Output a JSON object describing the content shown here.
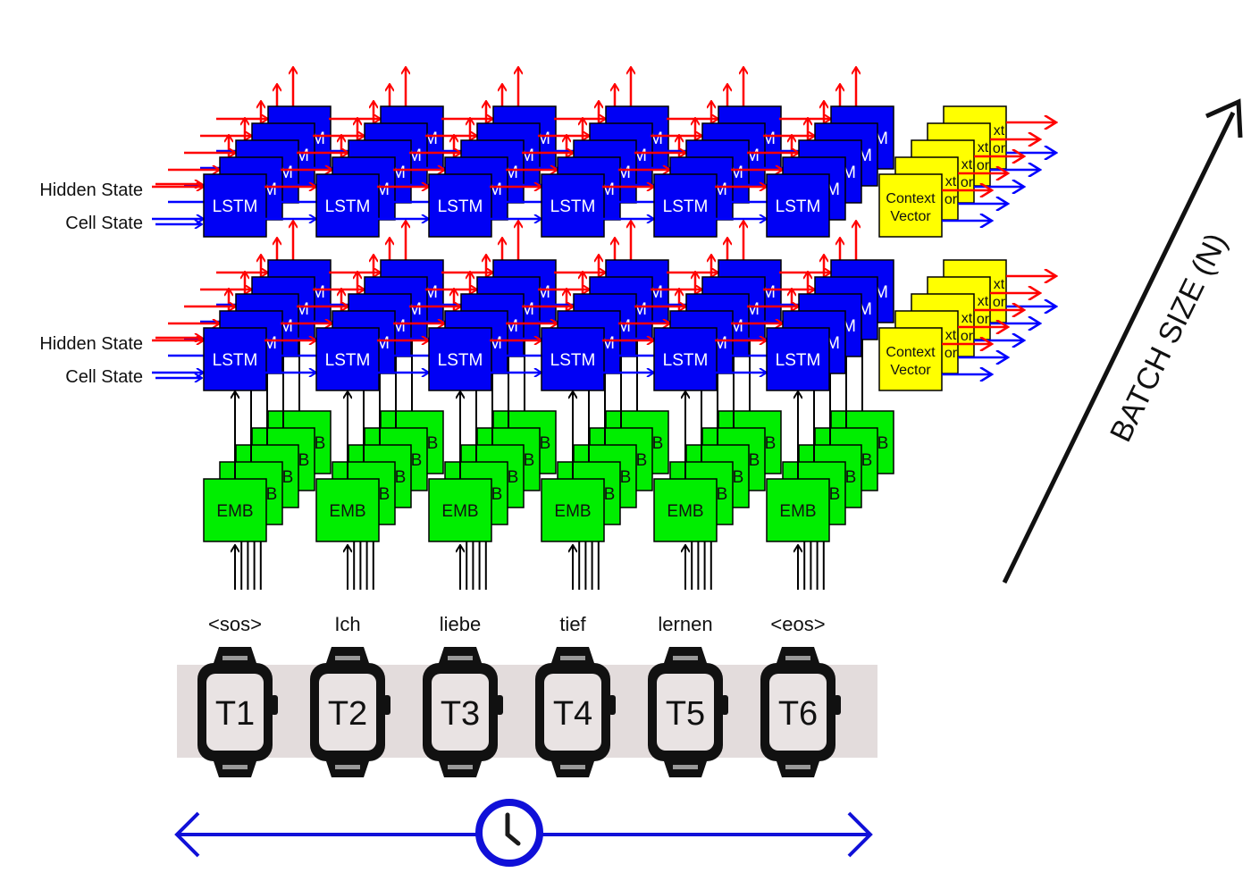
{
  "colors": {
    "lstm": "#0000f5",
    "embedding": "#00ee00",
    "context": "#ffff00",
    "hidden_arrow": "#ff0000",
    "cell_arrow": "#0000ff",
    "timeline": "#1010d8",
    "watch_band": "#e3dcdc",
    "watch": "#111111"
  },
  "labels": {
    "hidden_state": "Hidden State",
    "cell_state": "Cell State",
    "lstm": "LSTM",
    "emb": "EMB",
    "context_line1": "Context",
    "context_line2": "Vector",
    "batch_size": "BATCH SIZE (N)"
  },
  "tokens": [
    "<sos>",
    "Ich",
    "liebe",
    "tief",
    "lernen",
    "<eos>"
  ],
  "timesteps": [
    "T1",
    "T2",
    "T3",
    "T4",
    "T5",
    "T6"
  ],
  "icons": {
    "timeline": "clock-icon",
    "timestep": "watch-icon"
  }
}
